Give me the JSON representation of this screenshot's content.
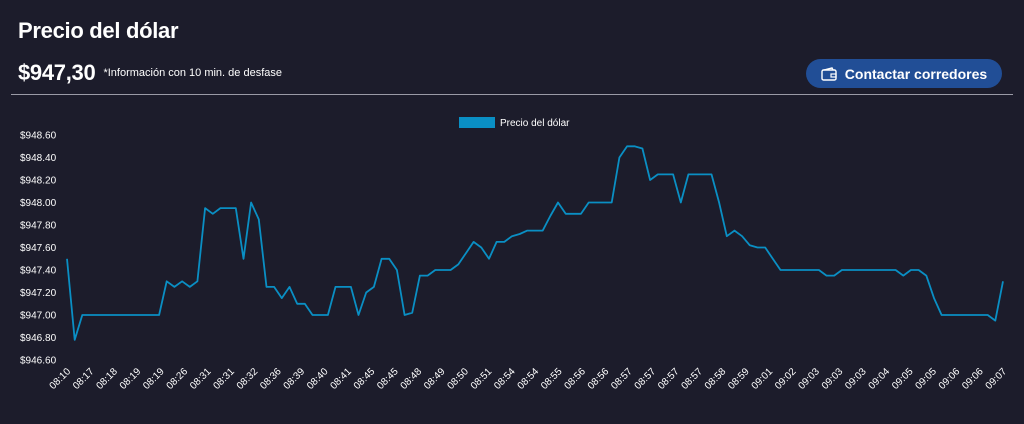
{
  "header": {
    "title": "Precio del dólar",
    "price": "$947,30",
    "note": "*Información con 10 min. de desfase",
    "contact_label": "Contactar corredores",
    "contact_icon": "wallet-icon"
  },
  "colors": {
    "background": "#1c1c2b",
    "line": "#0a8fc4",
    "button": "#214e96"
  },
  "chart_data": {
    "type": "line",
    "series": [
      {
        "name": "Precio del dólar",
        "values": [
          947.5,
          946.78,
          947.0,
          947.0,
          947.0,
          947.0,
          947.0,
          947.0,
          947.0,
          947.0,
          947.0,
          947.0,
          947.0,
          947.3,
          947.25,
          947.3,
          947.25,
          947.3,
          947.95,
          947.9,
          947.95,
          947.95,
          947.95,
          947.5,
          948.0,
          947.85,
          947.25,
          947.25,
          947.15,
          947.25,
          947.1,
          947.1,
          947.0,
          947.0,
          947.0,
          947.25,
          947.25,
          947.25,
          947.0,
          947.2,
          947.25,
          947.5,
          947.5,
          947.4,
          947.0,
          947.02,
          947.35,
          947.35,
          947.4,
          947.4,
          947.4,
          947.45,
          947.55,
          947.65,
          947.6,
          947.5,
          947.65,
          947.65,
          947.7,
          947.72,
          947.75,
          947.75,
          947.75,
          947.88,
          948.0,
          947.9,
          947.9,
          947.9,
          948.0,
          948.0,
          948.0,
          948.0,
          948.4,
          948.5,
          948.5,
          948.48,
          948.2,
          948.25,
          948.25,
          948.25,
          948.0,
          948.25,
          948.25,
          948.25,
          948.25,
          948.0,
          947.7,
          947.75,
          947.7,
          947.62,
          947.6,
          947.6,
          947.5,
          947.4,
          947.4,
          947.4,
          947.4,
          947.4,
          947.4,
          947.35,
          947.35,
          947.4,
          947.4,
          947.4,
          947.4,
          947.4,
          947.4,
          947.4,
          947.4,
          947.35,
          947.4,
          947.4,
          947.35,
          947.15,
          947.0,
          947.0,
          947.0,
          947.0,
          947.0,
          947.0,
          947.0,
          946.95,
          947.3
        ]
      }
    ],
    "x_tick_labels": [
      "08:10",
      "08:17",
      "08:18",
      "08:19",
      "08:19",
      "08:26",
      "08:31",
      "08:31",
      "08:32",
      "08:36",
      "08:39",
      "08:40",
      "08:41",
      "08:45",
      "08:45",
      "08:48",
      "08:49",
      "08:50",
      "08:51",
      "08:54",
      "08:54",
      "08:55",
      "08:56",
      "08:56",
      "08:57",
      "08:57",
      "08:57",
      "08:57",
      "08:58",
      "08:59",
      "09:01",
      "09:02",
      "09:03",
      "09:03",
      "09:03",
      "09:04",
      "09:05",
      "09:05",
      "09:06",
      "09:06",
      "09:07"
    ],
    "y_ticks": [
      "$946.60",
      "$946.80",
      "$947.00",
      "$947.20",
      "$947.40",
      "$947.60",
      "$947.80",
      "$948.00",
      "$948.20",
      "$948.40",
      "$948.60"
    ],
    "ylim": [
      946.6,
      948.6
    ],
    "grid": false,
    "legend": "top-center"
  }
}
